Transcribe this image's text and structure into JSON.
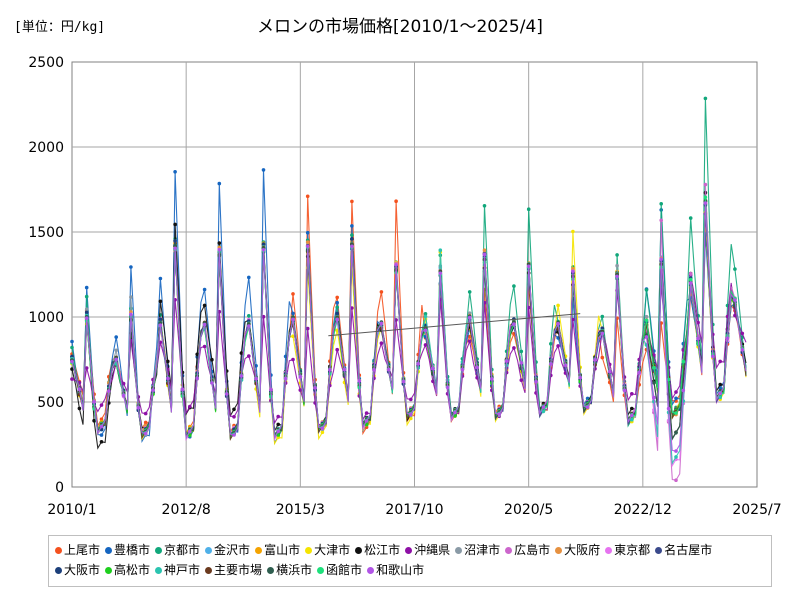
{
  "chart_data": {
    "type": "line",
    "title": "メロンの市場価格[2010/1～2025/4]",
    "unit_label": "[単位：円/kg]",
    "xlabel": "",
    "ylabel": "",
    "ylim": [
      0,
      2500
    ],
    "y_ticks": [
      "0",
      "500",
      "1000",
      "1500",
      "2000",
      "2500"
    ],
    "x_tick_labels": [
      "2010/1",
      "2012/8",
      "2015/3",
      "2017/10",
      "2020/5",
      "2022/12",
      "2025/7"
    ],
    "grid": true,
    "legend_position": "bottom",
    "trend": {
      "start_year": 2015.8,
      "start_value": 890,
      "end_year": 2021.5,
      "end_value": 1020,
      "color": "#595959"
    },
    "series": [
      {
        "name": "上尾市",
        "color": "#f4511e",
        "seasonal_peaks": [
          1050,
          1000,
          1450,
          1350,
          1400,
          1700,
          1690,
          1670,
          1200,
          1150,
          1200,
          1250,
          1000,
          950,
          1550,
          1350
        ],
        "troughs": [
          380,
          340,
          330,
          320,
          300,
          320,
          330,
          380,
          400,
          430,
          450,
          460,
          380,
          500,
          520
        ]
      },
      {
        "name": "豊橋市",
        "color": "#1565c0",
        "seasonal_peaks": [
          1190,
          1290,
          1870,
          1780,
          1880,
          1490,
          1550,
          1280,
          1210,
          1260,
          1300,
          1100,
          1250,
          1620,
          1500,
          1400
        ],
        "troughs": [
          290,
          270,
          280,
          290,
          280,
          330,
          350,
          420,
          410,
          410,
          430,
          480,
          390,
          480,
          560
        ]
      },
      {
        "name": "京都市",
        "color": "#11a77b",
        "seasonal_peaks": [
          1100,
          1050,
          1480,
          1390,
          1460,
          1450,
          1500,
          1320,
          1380,
          1650,
          1650,
          1290,
          1380,
          1660,
          2300,
          1790
        ],
        "troughs": [
          330,
          300,
          290,
          300,
          300,
          340,
          360,
          420,
          420,
          420,
          450,
          470,
          380,
          430,
          540
        ]
      },
      {
        "name": "金沢市",
        "color": "#4fb0e8",
        "seasonal_peaks": [
          1000,
          1020,
          1400,
          1420,
          1400,
          1400,
          1380,
          1300,
          1270,
          1350,
          1300,
          1250,
          1250,
          1350,
          1700,
          1500
        ],
        "troughs": [
          330,
          310,
          300,
          310,
          300,
          340,
          360,
          420,
          410,
          420,
          440,
          470,
          390,
          420,
          520
        ]
      },
      {
        "name": "富山市",
        "color": "#f4a300",
        "seasonal_peaks": [
          980,
          1000,
          1420,
          1380,
          1420,
          1400,
          1420,
          1300,
          1250,
          1380,
          1300,
          1280,
          1250,
          1320,
          1650,
          1450
        ],
        "troughs": [
          340,
          320,
          310,
          310,
          300,
          340,
          360,
          420,
          410,
          420,
          440,
          460,
          390,
          430,
          520
        ]
      },
      {
        "name": "大津市",
        "color": "#f5e400",
        "seasonal_peaks": [
          950,
          1000,
          1380,
          1400,
          1420,
          1300,
          1300,
          1330,
          1370,
          1300,
          1300,
          1510,
          1250,
          1300,
          1600,
          1450
        ],
        "troughs": [
          330,
          300,
          290,
          300,
          250,
          300,
          330,
          380,
          390,
          400,
          410,
          440,
          380,
          420,
          510
        ]
      },
      {
        "name": "松江市",
        "color": "#111111",
        "seasonal_peaks": [
          980,
          920,
          1540,
          1450,
          1420,
          1370,
          1450,
          1280,
          1250,
          1300,
          1250,
          1200,
          1250,
          1350,
          1720,
          1400
        ],
        "troughs": [
          230,
          330,
          430,
          440,
          330,
          360,
          370,
          410,
          420,
          430,
          450,
          480,
          420,
          300,
          560
        ]
      },
      {
        "name": "沖縄県",
        "color": "#8e10a6",
        "seasonal_peaks": [
          700,
          880,
          1100,
          1050,
          1000,
          950,
          1050,
          1000,
          1100,
          1100,
          1050,
          1000,
          1150,
          1200,
          1600,
          1200
        ],
        "troughs": [
          450,
          420,
          440,
          400,
          380,
          350,
          400,
          500,
          400,
          400,
          420,
          460,
          510,
          540,
          700
        ]
      },
      {
        "name": "沼津市",
        "color": "#8a9aa6",
        "seasonal_peaks": [
          1050,
          1100,
          1450,
          1380,
          1400,
          1420,
          1450,
          1280,
          1300,
          1400,
          1300,
          1250,
          1300,
          1350,
          1680,
          1450
        ],
        "troughs": [
          320,
          300,
          290,
          300,
          290,
          330,
          350,
          410,
          410,
          410,
          440,
          460,
          380,
          420,
          520
        ]
      },
      {
        "name": "広島市",
        "color": "#cc66cc",
        "seasonal_peaks": [
          1000,
          1000,
          1400,
          1380,
          1400,
          1400,
          1420,
          1300,
          1280,
          1350,
          1300,
          1250,
          1250,
          1550,
          1780,
          1480
        ],
        "troughs": [
          330,
          310,
          300,
          310,
          300,
          340,
          360,
          420,
          410,
          420,
          440,
          460,
          400,
          30,
          510
        ]
      },
      {
        "name": "大阪府",
        "color": "#e69140",
        "seasonal_peaks": [
          1020,
          1020,
          1430,
          1400,
          1430,
          1430,
          1450,
          1300,
          1280,
          1380,
          1320,
          1270,
          1260,
          1330,
          1690,
          1470
        ],
        "troughs": [
          340,
          320,
          300,
          310,
          300,
          340,
          360,
          420,
          410,
          420,
          440,
          460,
          390,
          420,
          520
        ]
      },
      {
        "name": "東京都",
        "color": "#e673f0",
        "seasonal_peaks": [
          990,
          1010,
          1420,
          1390,
          1410,
          1410,
          1430,
          1300,
          1270,
          1360,
          1310,
          1260,
          1250,
          1320,
          1680,
          1460
        ],
        "troughs": [
          330,
          310,
          300,
          310,
          300,
          340,
          360,
          420,
          410,
          420,
          440,
          460,
          390,
          120,
          510
        ]
      },
      {
        "name": "名古屋市",
        "color": "#3b4a8c",
        "seasonal_peaks": [
          1000,
          1000,
          1420,
          1380,
          1400,
          1400,
          1420,
          1290,
          1260,
          1350,
          1300,
          1250,
          1240,
          1320,
          1670,
          1450
        ],
        "troughs": [
          330,
          310,
          300,
          300,
          300,
          340,
          360,
          420,
          410,
          420,
          440,
          460,
          390,
          420,
          520
        ]
      },
      {
        "name": "大阪市",
        "color": "#1c3f7a",
        "seasonal_peaks": [
          1010,
          1010,
          1430,
          1390,
          1410,
          1420,
          1440,
          1300,
          1270,
          1370,
          1310,
          1260,
          1250,
          1330,
          1680,
          1460
        ],
        "troughs": [
          330,
          310,
          300,
          310,
          300,
          340,
          360,
          420,
          410,
          420,
          440,
          460,
          390,
          420,
          520
        ]
      },
      {
        "name": "高松市",
        "color": "#1ecf1e",
        "seasonal_peaks": [
          980,
          990,
          1400,
          1370,
          1390,
          1390,
          1410,
          1280,
          1250,
          1340,
          1290,
          1240,
          1230,
          1310,
          1660,
          1440
        ],
        "troughs": [
          330,
          310,
          300,
          300,
          300,
          340,
          360,
          420,
          410,
          420,
          440,
          460,
          390,
          420,
          520
        ]
      },
      {
        "name": "神戸市",
        "color": "#2bc4b0",
        "seasonal_peaks": [
          1000,
          1000,
          1410,
          1380,
          1400,
          1400,
          1420,
          1290,
          1380,
          1350,
          1300,
          1250,
          1240,
          1320,
          1670,
          1450
        ],
        "troughs": [
          330,
          310,
          300,
          300,
          300,
          340,
          360,
          420,
          410,
          420,
          440,
          460,
          390,
          150,
          520
        ]
      },
      {
        "name": "主要市場",
        "color": "#6b3a1f",
        "seasonal_peaks": [
          990,
          1000,
          1410,
          1380,
          1400,
          1400,
          1420,
          1290,
          1260,
          1350,
          1300,
          1250,
          1240,
          1320,
          1670,
          1450
        ],
        "troughs": [
          330,
          310,
          300,
          300,
          300,
          340,
          360,
          420,
          410,
          420,
          440,
          460,
          390,
          420,
          520
        ]
      },
      {
        "name": "横浜市",
        "color": "#2f5e4f",
        "seasonal_peaks": [
          1000,
          1000,
          1420,
          1380,
          1400,
          1410,
          1420,
          1290,
          1260,
          1350,
          1300,
          1250,
          1240,
          1320,
          1670,
          1450
        ],
        "troughs": [
          330,
          310,
          300,
          300,
          300,
          340,
          360,
          420,
          410,
          420,
          440,
          460,
          390,
          300,
          520
        ]
      },
      {
        "name": "函館市",
        "color": "#1ee07c",
        "seasonal_peaks": [
          980,
          990,
          1400,
          1370,
          1390,
          1390,
          1410,
          1280,
          1250,
          1340,
          1290,
          1240,
          1230,
          1310,
          1700,
          1460
        ],
        "troughs": [
          330,
          310,
          300,
          300,
          300,
          340,
          360,
          420,
          410,
          420,
          440,
          460,
          390,
          420,
          520
        ]
      },
      {
        "name": "和歌山市",
        "color": "#b155e6",
        "seasonal_peaks": [
          1000,
          1000,
          1410,
          1380,
          1400,
          1400,
          1420,
          1290,
          1260,
          1350,
          1300,
          1250,
          1240,
          1320,
          1670,
          1450
        ],
        "troughs": [
          330,
          310,
          300,
          300,
          300,
          340,
          360,
          420,
          410,
          420,
          440,
          460,
          390,
          200,
          520
        ]
      }
    ]
  }
}
